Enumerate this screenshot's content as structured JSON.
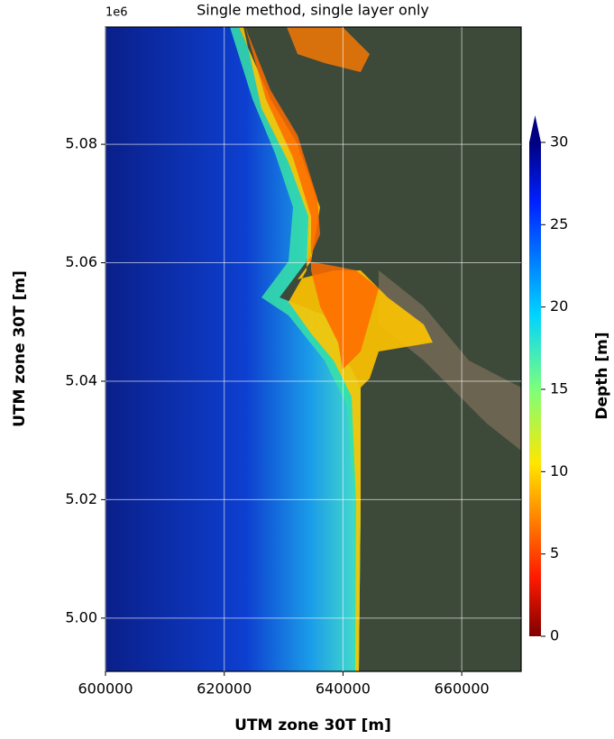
{
  "chart_data": {
    "type": "map",
    "title": "Single method, single layer only",
    "x_label": "UTM zone 30T [m]",
    "y_label": "UTM zone 30T [m]",
    "y_offset_label": "1e6",
    "xlim": [
      600000,
      670000
    ],
    "ylim": [
      4991000,
      5099800
    ],
    "xticks": [
      600000,
      620000,
      640000,
      660000
    ],
    "yticks": [
      {
        "value": 5000000,
        "label": "5.00"
      },
      {
        "value": 5020000,
        "label": "5.02"
      },
      {
        "value": 5040000,
        "label": "5.04"
      },
      {
        "value": 5060000,
        "label": "5.06"
      },
      {
        "value": 5080000,
        "label": "5.08"
      }
    ],
    "grid": true,
    "colorbar": {
      "label": "Depth [m]",
      "lim": [
        0,
        30
      ],
      "ticks": [
        0,
        5,
        10,
        15,
        20,
        25,
        30
      ]
    }
  }
}
